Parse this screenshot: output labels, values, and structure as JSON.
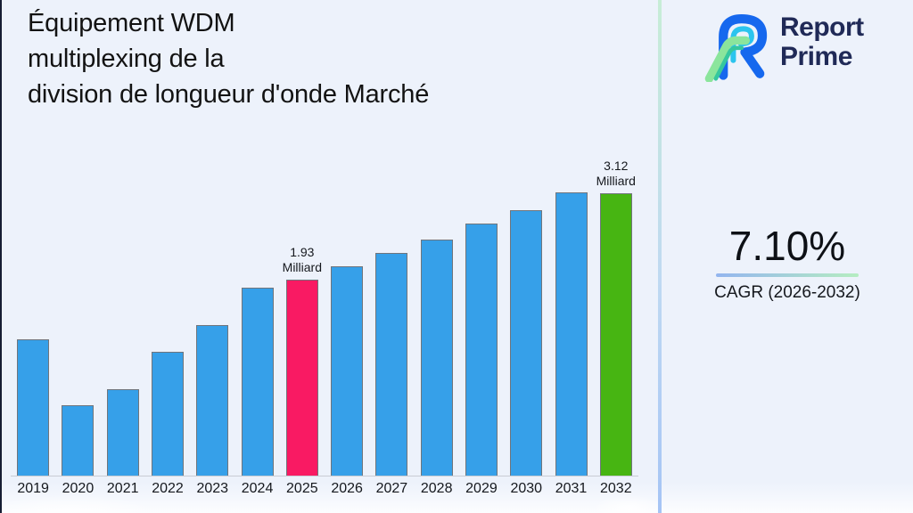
{
  "header": {
    "title_lines": [
      "Équipement WDM",
      "multiplexing de la",
      "division de longueur d'onde Marché"
    ]
  },
  "brand": {
    "name_lines": [
      "Report",
      "Prime"
    ],
    "text_color": "#202A57",
    "logo_colors": {
      "blue": "#1668EE",
      "cyan": "#2BC4EE",
      "green": "#8BE59C",
      "teal": "#35C79E"
    }
  },
  "chart_data": {
    "type": "bar",
    "title": "Équipement WDM multiplexing de la division de longueur d'onde Marché",
    "unit": "Milliard",
    "categories": [
      "2019",
      "2020",
      "2021",
      "2022",
      "2023",
      "2024",
      "2025",
      "2026",
      "2027",
      "2028",
      "2029",
      "2030",
      "2031",
      "2032"
    ],
    "values": [
      1.34,
      0.69,
      0.85,
      1.22,
      1.48,
      1.85,
      1.93,
      2.06,
      2.19,
      2.32,
      2.48,
      2.61,
      2.79,
      3.12
    ],
    "ylim": [
      0,
      3.12
    ],
    "grid": false,
    "legend": false,
    "xlabel": "",
    "ylabel": "",
    "colors": {
      "default": "#36A0E9",
      "highlights": {
        "2025": "#F91A63",
        "2032": "#47B512"
      },
      "bar_border": "#70757C",
      "axis_line": "#C9CCD4"
    },
    "annotations": [
      {
        "category": "2025",
        "lines": [
          "1.93",
          "Milliard"
        ]
      },
      {
        "category": "2032",
        "lines": [
          "3.12",
          "Milliard"
        ]
      }
    ]
  },
  "cagr": {
    "value": "7.10%",
    "label": "CAGR (2026-2032)",
    "underline_from": "#93B5EF",
    "underline_to": "#B5EDC1"
  },
  "theme": {
    "background": "#EDF2FB",
    "divider_top": "#C7EDD6",
    "divider_mid": "#BFD9F2",
    "divider_bottom": "#A5C4F5",
    "left_edge": "#161D33"
  }
}
